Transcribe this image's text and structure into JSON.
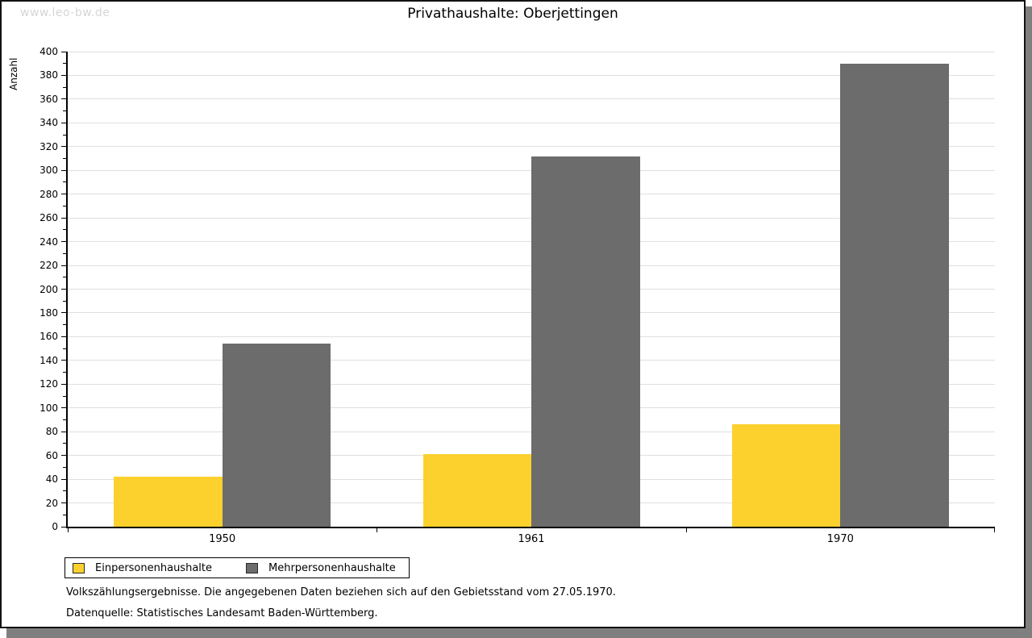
{
  "watermark": "www.leo-bw.de",
  "chart_data": {
    "type": "bar",
    "title": "Privathaushalte: Oberjettingen",
    "ylabel": "Anzahl",
    "xlabel": "",
    "categories": [
      "1950",
      "1961",
      "1970"
    ],
    "series": [
      {
        "name": "Einpersonenhaushalte",
        "color": "#fcd12e",
        "values": [
          42,
          61,
          86
        ]
      },
      {
        "name": "Mehrpersonenhaushalte",
        "color": "#6c6c6c",
        "values": [
          154,
          312,
          390
        ]
      }
    ],
    "ylim": [
      0,
      400
    ],
    "y_tick_step": 20,
    "y_minor_tick_step": 10,
    "grid": true,
    "legend_position": "bottom-left"
  },
  "footnotes": [
    "Volkszählungsergebnisse. Die angegebenen Daten beziehen sich auf den Gebietsstand vom 27.05.1970.",
    "Datenquelle: Statistisches Landesamt Baden-Württemberg."
  ],
  "colors": {
    "grid": "#dfdfdf",
    "axis": "#000000",
    "watermark": "#d6d6d6",
    "frame_shadow": "#7f7f7f",
    "panel_border": "#111111"
  }
}
